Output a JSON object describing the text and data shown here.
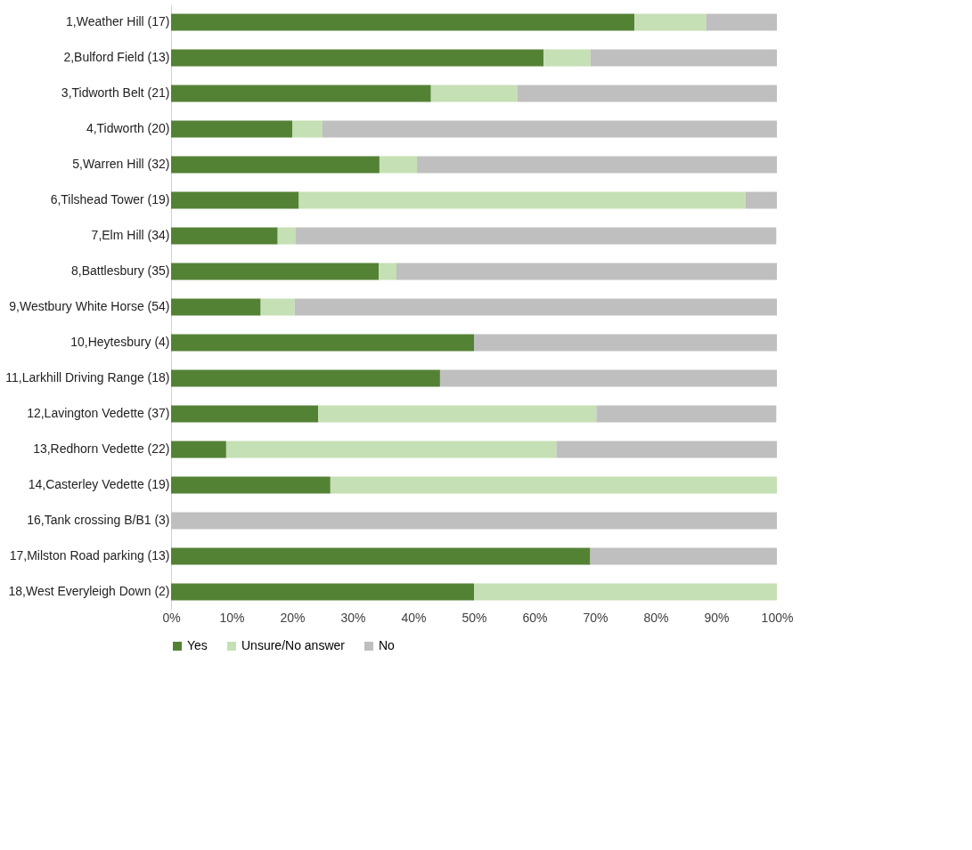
{
  "chart_data": {
    "type": "bar",
    "orientation": "horizontal",
    "stacked": true,
    "categories": [
      "1,Weather Hill (17)",
      "2,Bulford Field (13)",
      "3,Tidworth Belt (21)",
      "4,Tidworth (20)",
      "5,Warren Hill (32)",
      "6,Tilshead Tower (19)",
      "7,Elm Hill (34)",
      "8,Battlesbury (35)",
      "9,Westbury White Horse (54)",
      "10,Heytesbury (4)",
      "11,Larkhill Driving Range (18)",
      "12,Lavington Vedette (37)",
      "13,Redhorn Vedette (22)",
      "14,Casterley Vedette (19)",
      "16,Tank crossing B/B1 (3)",
      "17,Milston Road parking (13)",
      "18,West Everyleigh Down (2)"
    ],
    "series": [
      {
        "name": "Yes",
        "color": "#548235",
        "values": [
          76.5,
          61.5,
          42.9,
          20,
          34.4,
          21.1,
          17.6,
          34.3,
          14.8,
          50,
          44.4,
          24.3,
          9.1,
          26.3,
          0,
          69.2,
          50
        ]
      },
      {
        "name": "Unsure/No answer",
        "color": "#c5e0b4",
        "values": [
          11.8,
          7.7,
          14.3,
          5,
          6.2,
          73.7,
          2.9,
          2.9,
          5.6,
          0,
          0,
          45.9,
          54.5,
          73.7,
          0,
          0,
          50
        ]
      },
      {
        "name": "No",
        "color": "#bfbfbf",
        "values": [
          11.7,
          30.8,
          42.8,
          75,
          59.4,
          5.2,
          79.4,
          62.8,
          79.6,
          50,
          55.6,
          29.7,
          36.4,
          0,
          100,
          30.8,
          0
        ]
      }
    ],
    "xlim": [
      0,
      100
    ],
    "xticks": [
      {
        "value": 0,
        "label": "0%"
      },
      {
        "value": 10,
        "label": "10%"
      },
      {
        "value": 20,
        "label": "20%"
      },
      {
        "value": 30,
        "label": "30%"
      },
      {
        "value": 40,
        "label": "40%"
      },
      {
        "value": 50,
        "label": "50%"
      },
      {
        "value": 60,
        "label": "60%"
      },
      {
        "value": 70,
        "label": "70%"
      },
      {
        "value": 80,
        "label": "80%"
      },
      {
        "value": 90,
        "label": "90%"
      },
      {
        "value": 100,
        "label": "100%"
      }
    ],
    "grid": false,
    "legend": "bottom"
  }
}
